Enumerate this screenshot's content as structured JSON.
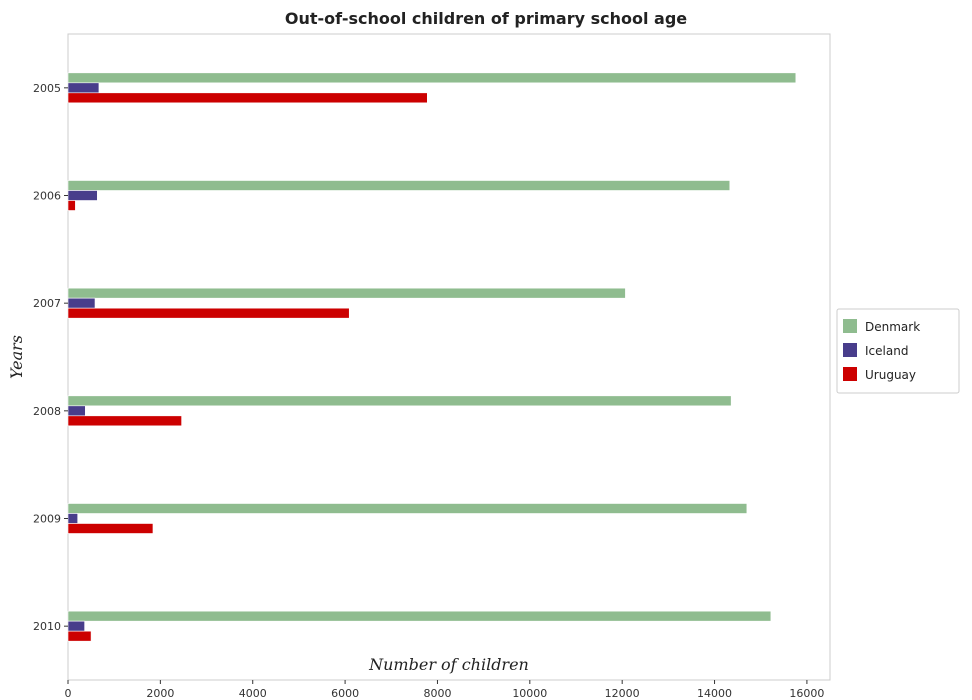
{
  "chart_data": {
    "type": "bar",
    "orientation": "horizontal",
    "title": "Out-of-school children of primary school age",
    "xlabel": "Number of children",
    "ylabel": "Years",
    "categories": [
      "2005",
      "2006",
      "2007",
      "2008",
      "2009",
      "2010"
    ],
    "xlim": [
      0,
      16500
    ],
    "xticks": [
      0,
      2000,
      4000,
      6000,
      8000,
      10000,
      12000,
      14000,
      16000
    ],
    "xtick_labels": [
      "0",
      "2000",
      "4000",
      "6000",
      "8000",
      "10000",
      "12000",
      "14000",
      "16000"
    ],
    "grid": false,
    "legend_position": "right",
    "series": [
      {
        "name": "Denmark",
        "color": "#8fbc8f",
        "values": [
          15760,
          14330,
          12070,
          14360,
          14700,
          15220
        ]
      },
      {
        "name": "Iceland",
        "color": "#483d8b",
        "values": [
          670,
          635,
          585,
          375,
          210,
          360
        ]
      },
      {
        "name": "Uruguay",
        "color": "#cc0000",
        "values": [
          7780,
          160,
          6090,
          2460,
          1840,
          500
        ]
      }
    ]
  }
}
